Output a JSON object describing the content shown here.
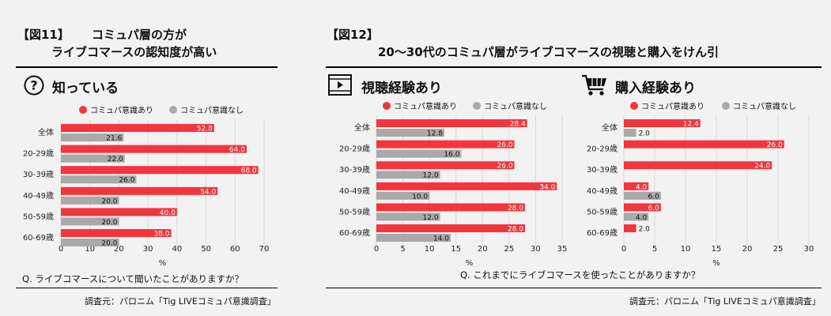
{
  "left": {
    "fig_label": "【図11】",
    "title_line1": "コミュパ層の方が",
    "title_line2": "ライブコマースの認知度が高い",
    "section_title": "知っている",
    "question": "Q. ライブコマースについて聞いたことがありますか？",
    "source": "調査元：パロニム「Tig LIVEコミュパ意識調査」"
  },
  "right": {
    "fig_label": "【図12】",
    "title": "20〜30代のコミュパ層がライブコマースの視聴と購入をけん引",
    "question": "Q. これまでにライブコマースを使ったことがありますか？",
    "source": "調査元：パロニム「Tig LIVEコミュパ意識調査」"
  },
  "colors": {
    "red": "#f4353b",
    "gray": "#a9a9a9",
    "grid": "#d9d9d9"
  },
  "icons": {
    "left_section": "question-circle-icon",
    "mid_section": "video-player-icon",
    "right_section": "shopping-cart-icon"
  },
  "chart_data": [
    {
      "type": "bar",
      "orientation": "horizontal",
      "title": "知っている",
      "legend_position": "top",
      "categories": [
        "全体",
        "20-29歳",
        "30-39歳",
        "40-49歳",
        "50-59歳",
        "60-69歳"
      ],
      "series": [
        {
          "name": "コミュパ意識あり",
          "color": "#f4353b",
          "values": [
            52.8,
            64.0,
            68.0,
            54.0,
            40.0,
            38.0
          ]
        },
        {
          "name": "コミュパ意識なし",
          "color": "#a9a9a9",
          "values": [
            21.6,
            22.0,
            26.0,
            20.0,
            20.0,
            20.0
          ]
        }
      ],
      "xlabel": "%",
      "xlim": [
        0,
        70
      ],
      "xticks": [
        0,
        10,
        20,
        30,
        40,
        50,
        60,
        70
      ],
      "grid": true
    },
    {
      "type": "bar",
      "orientation": "horizontal",
      "title": "視聴経験あり",
      "legend_position": "top",
      "categories": [
        "全体",
        "20-29歳",
        "30-39歳",
        "40-49歳",
        "50-59歳",
        "60-69歳"
      ],
      "series": [
        {
          "name": "コミュパ意識あり",
          "color": "#f4353b",
          "values": [
            28.4,
            26.0,
            26.0,
            34.0,
            28.0,
            28.0
          ]
        },
        {
          "name": "コミュパ意識なし",
          "color": "#a9a9a9",
          "values": [
            12.8,
            16.0,
            12.0,
            10.0,
            12.0,
            14.0
          ]
        }
      ],
      "xlabel": "%",
      "xlim": [
        0,
        35
      ],
      "xticks": [
        0,
        5,
        10,
        15,
        20,
        25,
        30,
        35
      ],
      "grid": true
    },
    {
      "type": "bar",
      "orientation": "horizontal",
      "title": "購入経験あり",
      "legend_position": "top",
      "categories": [
        "全体",
        "20-29歳",
        "30-39歳",
        "40-49歳",
        "50-59歳",
        "60-69歳"
      ],
      "series": [
        {
          "name": "コミュパ意識あり",
          "color": "#f4353b",
          "values": [
            12.4,
            26.0,
            24.0,
            4.0,
            6.0,
            2.0
          ]
        },
        {
          "name": "コミュパ意識なし",
          "color": "#a9a9a9",
          "values": [
            2.0,
            null,
            null,
            6.0,
            4.0,
            null
          ]
        }
      ],
      "xlabel": "%",
      "xlim": [
        0,
        30
      ],
      "xticks": [
        0,
        5,
        10,
        15,
        20,
        25,
        30
      ],
      "grid": true
    }
  ]
}
